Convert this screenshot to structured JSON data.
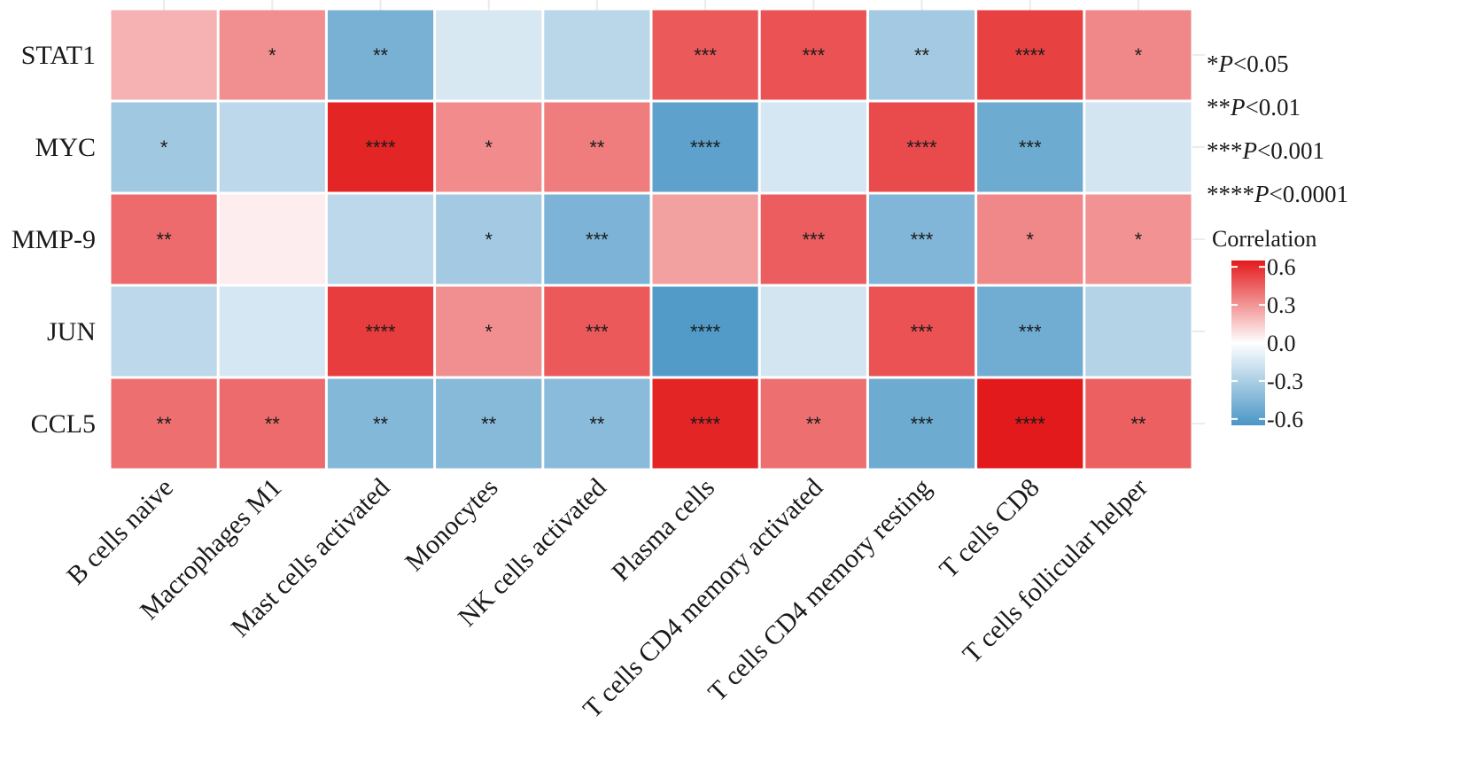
{
  "chart_data": {
    "type": "heatmap",
    "rows": [
      "STAT1",
      "MYC",
      "MMP-9",
      "JUN",
      "CCL5"
    ],
    "columns": [
      "B cells naive",
      "Macrophages M1",
      "Mast cells activated",
      "Monocytes",
      "NK cells activated",
      "Plasma cells",
      "T cells CD4 memory activated",
      "T cells CD4 memory resting",
      "T cells CD8",
      "T cells follicular helper"
    ],
    "values": [
      [
        0.22,
        0.32,
        -0.48,
        -0.14,
        -0.25,
        0.47,
        0.49,
        -0.33,
        0.54,
        0.34
      ],
      [
        -0.34,
        -0.24,
        0.62,
        0.33,
        0.37,
        -0.58,
        -0.15,
        0.51,
        -0.52,
        -0.16
      ],
      [
        0.42,
        0.05,
        -0.24,
        -0.33,
        -0.47,
        0.27,
        0.46,
        -0.45,
        0.34,
        0.31
      ],
      [
        -0.24,
        -0.15,
        0.55,
        0.32,
        0.47,
        -0.62,
        -0.16,
        0.49,
        -0.51,
        -0.27
      ],
      [
        0.41,
        0.42,
        -0.44,
        -0.43,
        -0.42,
        0.62,
        0.41,
        -0.52,
        0.68,
        0.45
      ]
    ],
    "significance": [
      [
        "",
        "*",
        "**",
        "",
        "",
        "***",
        "***",
        "**",
        "****",
        "*"
      ],
      [
        "*",
        "",
        "****",
        "*",
        "**",
        "****",
        "",
        "****",
        "***",
        ""
      ],
      [
        "**",
        "",
        "",
        "*",
        "***",
        "",
        "***",
        "***",
        "*",
        "*"
      ],
      [
        "",
        "",
        "****",
        "*",
        "***",
        "****",
        "",
        "***",
        "***",
        ""
      ],
      [
        "**",
        "**",
        "**",
        "**",
        "**",
        "****",
        "**",
        "***",
        "****",
        "**"
      ]
    ],
    "legend_title": "Correlation",
    "colorbar_ticks": [
      "0.6",
      "0.3",
      "0.0",
      "-0.3",
      "-0.6"
    ],
    "color_range": [
      -0.65,
      0.65
    ],
    "colors": {
      "low": "#4a96c6",
      "mid": "#ffffff",
      "high": "#e31a1c"
    },
    "pvalue_legend": [
      {
        "stars": "*",
        "label": "P<0.05"
      },
      {
        "stars": "**",
        "label": "P<0.01"
      },
      {
        "stars": "***",
        "label": "P<0.001"
      },
      {
        "stars": "****",
        "label": "P<0.0001"
      }
    ],
    "grid": true
  }
}
